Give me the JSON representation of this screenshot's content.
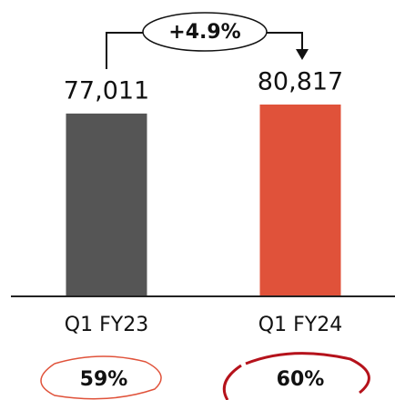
{
  "chart_data": {
    "type": "bar",
    "categories": [
      "Q1 FY23",
      "Q1 FY24"
    ],
    "values": [
      77011,
      80817
    ],
    "value_labels": [
      "77,011",
      "80,817"
    ],
    "colors": [
      "#555555",
      "#e0523a"
    ],
    "annotation": "+4.9%",
    "footer_labels": [
      "59%",
      "60%"
    ]
  }
}
